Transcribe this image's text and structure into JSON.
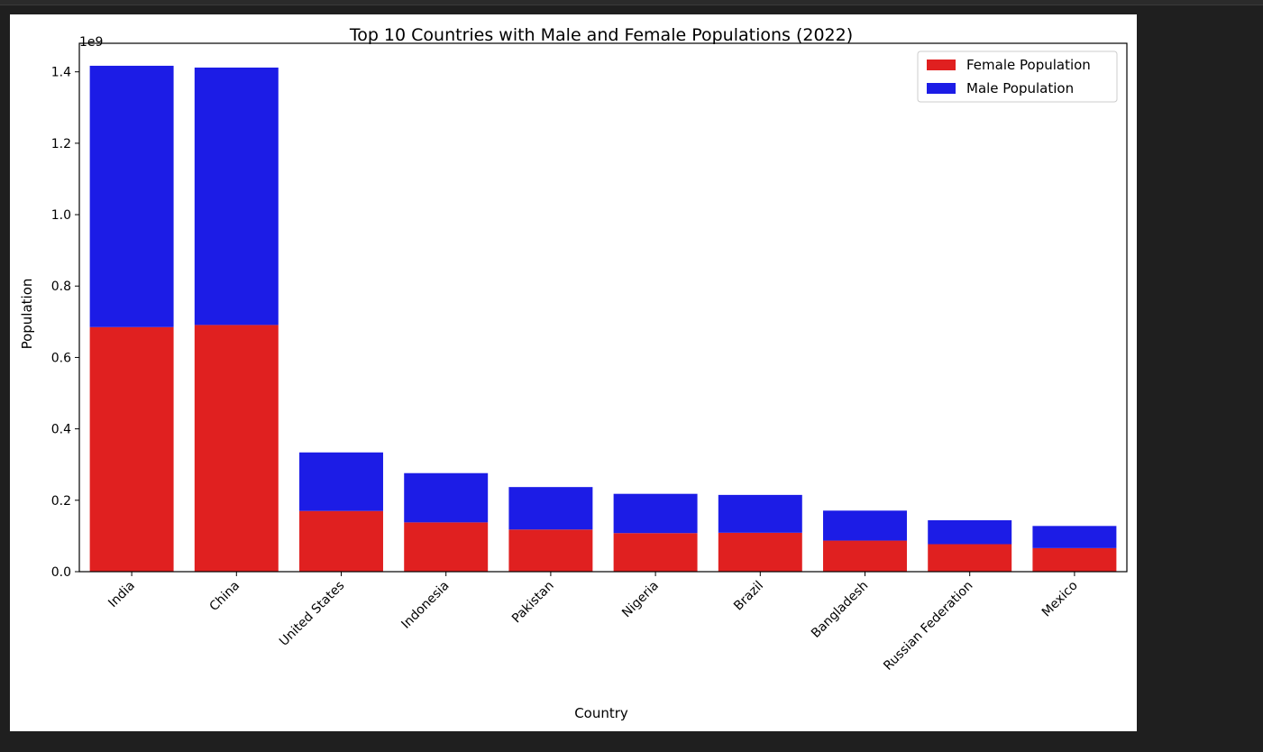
{
  "chart_data": {
    "type": "bar",
    "stacked": true,
    "title": "Top 10 Countries with Male and Female Populations (2022)",
    "xlabel": "Country",
    "ylabel": "Population",
    "y_offset_text": "1e9",
    "y_scale": 1000000000,
    "ylim": [
      0,
      1.48
    ],
    "yticks": [
      0.0,
      0.2,
      0.4,
      0.6,
      0.8,
      1.0,
      1.2,
      1.4
    ],
    "ytick_labels": [
      "0.0",
      "0.2",
      "0.4",
      "0.6",
      "0.8",
      "1.0",
      "1.2",
      "1.4"
    ],
    "grid": false,
    "legend_position": "top-right",
    "categories": [
      "India",
      "China",
      "United States",
      "Indonesia",
      "Pakistan",
      "Nigeria",
      "Brazil",
      "Bangladesh",
      "Russian Federation",
      "Mexico"
    ],
    "series": [
      {
        "name": "Female Population",
        "color": "#e02020",
        "values": [
          0.685,
          0.691,
          0.17,
          0.138,
          0.118,
          0.108,
          0.109,
          0.087,
          0.077,
          0.066
        ]
      },
      {
        "name": "Male Population",
        "color": "#1c1ce6",
        "values": [
          0.732,
          0.721,
          0.164,
          0.138,
          0.119,
          0.11,
          0.106,
          0.084,
          0.067,
          0.062
        ]
      }
    ]
  }
}
